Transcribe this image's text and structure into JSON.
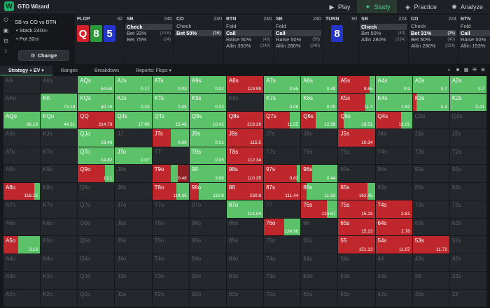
{
  "app": {
    "title": "GTO Wizard",
    "logo": "W"
  },
  "nav": [
    {
      "label": "Play",
      "icon": "play-icon",
      "glyph": "▶",
      "active": false
    },
    {
      "label": "Study",
      "icon": "study-icon",
      "glyph": "✦",
      "active": true
    },
    {
      "label": "Practice",
      "icon": "gamepad-icon",
      "glyph": "◈",
      "active": false
    },
    {
      "label": "Analyze",
      "icon": "bulb-icon",
      "glyph": "✺",
      "active": false
    }
  ],
  "situation": {
    "title": "SB vs CO vs BTN",
    "stack_label": "Stack 240",
    "stack_unit": "bb",
    "pot_label": "Pot 32",
    "pot_unit": "bb",
    "change_label": "Change"
  },
  "columns": [
    {
      "type": "flop",
      "pos": "FLOP",
      "stack": "32",
      "cards": [
        {
          "rank": "Q",
          "color": "red"
        },
        {
          "rank": "8",
          "color": "green"
        },
        {
          "rank": "5",
          "color": "blue"
        }
      ]
    },
    {
      "type": "actions",
      "pos": "SB",
      "stack": "240",
      "actions": [
        {
          "label": "Check",
          "pct": "",
          "sel": true
        },
        {
          "label": "Bet 33%",
          "pct": "(10.6)",
          "sel": false
        },
        {
          "label": "Bet 75%",
          "pct": "(24)",
          "sel": false
        }
      ]
    },
    {
      "type": "actions",
      "pos": "CO",
      "stack": "240",
      "actions": [
        {
          "label": "Check",
          "pct": "",
          "sel": false
        },
        {
          "label": "Bet 50%",
          "pct": "(16)",
          "sel": true
        }
      ]
    },
    {
      "type": "actions",
      "pos": "BTN",
      "stack": "240",
      "actions": [
        {
          "label": "Fold",
          "pct": "",
          "sel": false
        },
        {
          "label": "Call",
          "pct": "",
          "sel": true
        },
        {
          "label": "Raise 50%",
          "pct": "(48)",
          "sel": false
        },
        {
          "label": "Allin 350%",
          "pct": "(240)",
          "sel": false
        }
      ]
    },
    {
      "type": "actions",
      "pos": "SB",
      "stack": "240",
      "actions": [
        {
          "label": "Fold",
          "pct": "",
          "sel": false
        },
        {
          "label": "Call",
          "pct": "",
          "sel": true
        },
        {
          "label": "Raise 50%",
          "pct": "(56)",
          "sel": false
        },
        {
          "label": "Allin 280%",
          "pct": "(240)",
          "sel": false
        }
      ]
    },
    {
      "type": "turn",
      "pos": "TURN",
      "stack": "80",
      "card": {
        "rank": "8",
        "color": "blue"
      }
    },
    {
      "type": "actions",
      "pos": "SB",
      "stack": "224",
      "actions": [
        {
          "label": "Check",
          "pct": "",
          "sel": true
        },
        {
          "label": "Bet 50%",
          "pct": "(40)",
          "sel": false
        },
        {
          "label": "Allin 280%",
          "pct": "(224)",
          "sel": false
        }
      ]
    },
    {
      "type": "actions",
      "pos": "CO",
      "stack": "224",
      "actions": [
        {
          "label": "Check",
          "pct": "",
          "sel": false
        },
        {
          "label": "Bet 31%",
          "pct": "(25)",
          "sel": true
        },
        {
          "label": "Bet 50%",
          "pct": "(40)",
          "sel": false
        },
        {
          "label": "Allin 280%",
          "pct": "(224)",
          "sel": false
        }
      ]
    },
    {
      "type": "actions",
      "pos": "BTN",
      "stack": "224",
      "actions": [
        {
          "label": "Fold",
          "pct": "",
          "sel": false
        },
        {
          "label": "Call",
          "pct": "",
          "sel": true
        },
        {
          "label": "Raise 50%",
          "pct": "(80)",
          "sel": false
        },
        {
          "label": "Allin 153%",
          "pct": "(224)",
          "sel": false
        }
      ]
    }
  ],
  "toolbar": {
    "tabs": [
      {
        "label": "Strategy + EV ▾",
        "active": true
      },
      {
        "label": "Ranges",
        "active": false
      },
      {
        "label": "Breakdown",
        "active": false
      },
      {
        "label": "Reports: Flops ▾",
        "active": false
      }
    ]
  },
  "colors": {
    "call": "#5cc26a",
    "raise": "#c0272d",
    "raise_dark": "#8e1f24",
    "check": "#24272b"
  },
  "grid": [
    [
      "AA",
      "",
      "",
      0,
      0
    ],
    [
      "AKs",
      "",
      "",
      0,
      0
    ],
    [
      "AQs",
      "64.69",
      "call",
      1,
      0
    ],
    [
      "AJs",
      "0.17",
      "call",
      1,
      0
    ],
    [
      "ATs",
      "0.02",
      "call",
      1,
      0
    ],
    [
      "A9s",
      "0.02",
      "call",
      1,
      0
    ],
    [
      "A8s",
      "119.99",
      "raise",
      0,
      1
    ],
    [
      "A7s",
      "0.55",
      "call",
      1,
      0
    ],
    [
      "A6s",
      "0.49",
      "call",
      1,
      0
    ],
    [
      "A5s",
      "9.65",
      "mix",
      0.15,
      0.85
    ],
    [
      "A4s",
      "0.9",
      "call",
      1,
      0
    ],
    [
      "A3s",
      "0.7",
      "call",
      1,
      0
    ],
    [
      "A2s",
      "0.7",
      "call",
      1,
      0
    ],
    [
      "AKo",
      "",
      "",
      0,
      0
    ],
    [
      "KK",
      "73.18",
      "call",
      1,
      0
    ],
    [
      "KQs",
      "40.16",
      "call",
      1,
      0
    ],
    [
      "KJs",
      "0.03",
      "call",
      1,
      0
    ],
    [
      "KTs",
      "0.05",
      "call",
      1,
      0
    ],
    [
      "K9s",
      "0.02",
      "call",
      1,
      0
    ],
    [
      "K8s",
      "",
      "",
      0,
      0
    ],
    [
      "K7s",
      "0.06",
      "call",
      1,
      0
    ],
    [
      "K6s",
      "0.05",
      "call",
      1,
      0
    ],
    [
      "K5s",
      "11.3",
      "mix",
      0.25,
      0.75
    ],
    [
      "K4s",
      "1.62",
      "call",
      1,
      0
    ],
    [
      "K3s",
      "0.4",
      "mix",
      0.9,
      0.1
    ],
    [
      "K2s",
      "0.41",
      "call",
      1,
      0
    ],
    [
      "AQo",
      "66.19",
      "call",
      1,
      0
    ],
    [
      "KQo",
      "44.31",
      "call",
      1,
      0
    ],
    [
      "QQ",
      "214.79",
      "raise",
      0,
      1
    ],
    [
      "QJs",
      "17.99",
      "call",
      1,
      0
    ],
    [
      "QTs",
      "15.48",
      "call",
      1,
      0
    ],
    [
      "Q9s",
      "10.42",
      "call",
      1,
      0
    ],
    [
      "Q8s",
      "218.26",
      "raise",
      0,
      1
    ],
    [
      "Q7s",
      "11.55",
      "mix",
      0.3,
      0.7
    ],
    [
      "Q6s",
      "12.39",
      "mix",
      0.6,
      0.4
    ],
    [
      "Q5s",
      "18.51",
      "mix",
      0.85,
      0.15
    ],
    [
      "Q4s",
      "12.01",
      "mix",
      0.3,
      0.7
    ],
    [
      "Q3s",
      "",
      "",
      0,
      0
    ],
    [
      "Q2s",
      "",
      "",
      0,
      0
    ],
    [
      "AJo",
      "",
      "",
      0,
      0
    ],
    [
      "KJo",
      "",
      "",
      0,
      0
    ],
    [
      "QJo",
      "19.46",
      "call",
      1,
      0
    ],
    [
      "JJ",
      "",
      "",
      0,
      0
    ],
    [
      "JTs",
      "0.09",
      "mix",
      0.5,
      0.5
    ],
    [
      "J9s",
      "0.01",
      "call",
      1,
      0
    ],
    [
      "J8s",
      "115.5",
      "raise",
      0,
      1
    ],
    [
      "J7s",
      "",
      "",
      0,
      0
    ],
    [
      "J6s",
      "",
      "",
      0,
      0
    ],
    [
      "J5s",
      "10.34",
      "raise",
      0,
      1
    ],
    [
      "J4s",
      "",
      "",
      0,
      0
    ],
    [
      "J3s",
      "",
      "",
      0,
      0
    ],
    [
      "J2s",
      "",
      "",
      0,
      0
    ],
    [
      "ATo",
      "",
      "",
      0,
      0
    ],
    [
      "KTo",
      "",
      "",
      0,
      0
    ],
    [
      "QTo",
      "14.82",
      "call",
      1,
      0
    ],
    [
      "JTo",
      "0.07",
      "call",
      1,
      0
    ],
    [
      "TT",
      "",
      "",
      0,
      0
    ],
    [
      "T9s",
      "0.05",
      "call",
      1,
      0
    ],
    [
      "T8s",
      "112.34",
      "raise",
      0,
      1
    ],
    [
      "T7s",
      "",
      "",
      0,
      0
    ],
    [
      "T6s",
      "",
      "",
      0,
      0
    ],
    [
      "T5s",
      "",
      "",
      0,
      0
    ],
    [
      "T4s",
      "",
      "",
      0,
      0
    ],
    [
      "T3s",
      "",
      "",
      0,
      0
    ],
    [
      "T2s",
      "",
      "",
      0,
      0
    ],
    [
      "A9o",
      "",
      "",
      0,
      0
    ],
    [
      "K9o",
      "",
      "",
      0,
      0
    ],
    [
      "Q9o",
      "13.1",
      "mix",
      0.25,
      0.75
    ],
    [
      "J9o",
      "",
      "",
      0,
      0
    ],
    [
      "T9o",
      "0.48",
      "mix",
      0.2,
      0.5
    ],
    [
      "99",
      "3.06",
      "call",
      1,
      0
    ],
    [
      "98s",
      "110.35",
      "raise",
      0,
      1
    ],
    [
      "97s",
      "0.82",
      "mix",
      0.1,
      0.9
    ],
    [
      "96s",
      "0.44",
      "mix",
      0.7,
      0.3
    ],
    [
      "95s",
      "",
      "",
      0,
      0
    ],
    [
      "94s",
      "",
      "",
      0,
      0
    ],
    [
      "93s",
      "",
      "",
      0,
      0
    ],
    [
      "92s",
      "",
      "",
      0,
      0
    ],
    [
      "A8o",
      "116.15",
      "mix",
      0.15,
      0.85
    ],
    [
      "K8o",
      "",
      "",
      0,
      0
    ],
    [
      "Q8o",
      "",
      "",
      0,
      0
    ],
    [
      "J8o",
      "",
      "",
      0,
      0
    ],
    [
      "T8o",
      "114.35",
      "mix",
      0.35,
      0.65
    ],
    [
      "98o",
      "110.8",
      "mix",
      0.75,
      0.25
    ],
    [
      "88",
      "230.8",
      "raise",
      0,
      1
    ],
    [
      "87s",
      "111.44",
      "raise",
      0,
      1
    ],
    [
      "86s",
      "11.59",
      "mix",
      0.85,
      0.15
    ],
    [
      "85s",
      "162.45",
      "mix",
      0.2,
      0.8
    ],
    [
      "84s",
      "",
      "",
      0,
      0
    ],
    [
      "83s",
      "",
      "",
      0,
      0
    ],
    [
      "82s",
      "",
      "",
      0,
      0
    ],
    [
      "A7o",
      "",
      "",
      0,
      0
    ],
    [
      "K7o",
      "",
      "",
      0,
      0
    ],
    [
      "Q7o",
      "",
      "",
      0,
      0
    ],
    [
      "J7o",
      "",
      "",
      0,
      0
    ],
    [
      "T7o",
      "",
      "",
      0,
      0
    ],
    [
      "97o",
      "",
      "",
      0,
      0
    ],
    [
      "87o",
      "114.04",
      "call",
      1,
      0
    ],
    [
      "77",
      "",
      "",
      0,
      0
    ],
    [
      "76s",
      "123.67",
      "mix",
      0.3,
      0.7
    ],
    [
      "75s",
      "15.19",
      "raise",
      0,
      1
    ],
    [
      "74s",
      "2.61",
      "raise",
      0,
      1
    ],
    [
      "73s",
      "",
      "",
      0,
      0
    ],
    [
      "72s",
      "",
      "",
      0,
      0
    ],
    [
      "A6o",
      "",
      "",
      0,
      0
    ],
    [
      "K6o",
      "",
      "",
      0,
      0
    ],
    [
      "Q6o",
      "",
      "",
      0,
      0
    ],
    [
      "J6o",
      "",
      "",
      0,
      0
    ],
    [
      "T6o",
      "",
      "",
      0,
      0
    ],
    [
      "96o",
      "",
      "",
      0,
      0
    ],
    [
      "86o",
      "",
      "",
      0,
      0
    ],
    [
      "76o",
      "124.96",
      "mix",
      0.45,
      0.55
    ],
    [
      "66",
      "",
      "",
      0,
      0
    ],
    [
      "65s",
      "15.23",
      "raise",
      0,
      1
    ],
    [
      "64s",
      "2.78",
      "raise",
      0,
      1
    ],
    [
      "63s",
      "",
      "",
      0,
      0
    ],
    [
      "62s",
      "",
      "",
      0,
      0
    ],
    [
      "A5o",
      "3.16",
      "mix",
      0.6,
      0.4
    ],
    [
      "K5o",
      "",
      "",
      0,
      0
    ],
    [
      "Q5o",
      "",
      "",
      0,
      0
    ],
    [
      "J5o",
      "",
      "",
      0,
      0
    ],
    [
      "T5o",
      "",
      "",
      0,
      0
    ],
    [
      "95o",
      "",
      "",
      0,
      0
    ],
    [
      "85o",
      "",
      "",
      0,
      0
    ],
    [
      "75o",
      "",
      "",
      0,
      0
    ],
    [
      "65o",
      "",
      "",
      0,
      0
    ],
    [
      "55",
      "151.13",
      "raise",
      0,
      1
    ],
    [
      "54s",
      "11.87",
      "raise",
      0,
      1
    ],
    [
      "53s",
      "11.72",
      "raise",
      0,
      1
    ],
    [
      "52s",
      "",
      "",
      0,
      0
    ],
    [
      "A4o",
      "",
      "",
      0,
      0
    ],
    [
      "K4o",
      "",
      "",
      0,
      0
    ],
    [
      "Q4o",
      "",
      "",
      0,
      0
    ],
    [
      "J4o",
      "",
      "",
      0,
      0
    ],
    [
      "T4o",
      "",
      "",
      0,
      0
    ],
    [
      "94o",
      "",
      "",
      0,
      0
    ],
    [
      "84o",
      "",
      "",
      0,
      0
    ],
    [
      "74o",
      "",
      "",
      0,
      0
    ],
    [
      "64o",
      "",
      "",
      0,
      0
    ],
    [
      "54o",
      "",
      "",
      0,
      0
    ],
    [
      "44",
      "",
      "",
      0,
      0
    ],
    [
      "43s",
      "",
      "",
      0,
      0
    ],
    [
      "42s",
      "",
      "",
      0,
      0
    ],
    [
      "A3o",
      "",
      "",
      0,
      0
    ],
    [
      "K3o",
      "",
      "",
      0,
      0
    ],
    [
      "Q3o",
      "",
      "",
      0,
      0
    ],
    [
      "J3o",
      "",
      "",
      0,
      0
    ],
    [
      "T3o",
      "",
      "",
      0,
      0
    ],
    [
      "93o",
      "",
      "",
      0,
      0
    ],
    [
      "83o",
      "",
      "",
      0,
      0
    ],
    [
      "73o",
      "",
      "",
      0,
      0
    ],
    [
      "63o",
      "",
      "",
      0,
      0
    ],
    [
      "53o",
      "",
      "",
      0,
      0
    ],
    [
      "43o",
      "",
      "",
      0,
      0
    ],
    [
      "33",
      "",
      "",
      0,
      0
    ],
    [
      "32s",
      "",
      "",
      0,
      0
    ],
    [
      "A2o",
      "",
      "",
      0,
      0
    ],
    [
      "K2o",
      "",
      "",
      0,
      0
    ],
    [
      "Q2o",
      "",
      "",
      0,
      0
    ],
    [
      "J2o",
      "",
      "",
      0,
      0
    ],
    [
      "T2o",
      "",
      "",
      0,
      0
    ],
    [
      "92o",
      "",
      "",
      0,
      0
    ],
    [
      "82o",
      "",
      "",
      0,
      0
    ],
    [
      "72o",
      "",
      "",
      0,
      0
    ],
    [
      "62o",
      "",
      "",
      0,
      0
    ],
    [
      "52o",
      "",
      "",
      0,
      0
    ],
    [
      "42o",
      "",
      "",
      0,
      0
    ],
    [
      "32o",
      "",
      "",
      0,
      0
    ],
    [
      "22",
      "",
      "",
      0,
      0
    ]
  ]
}
